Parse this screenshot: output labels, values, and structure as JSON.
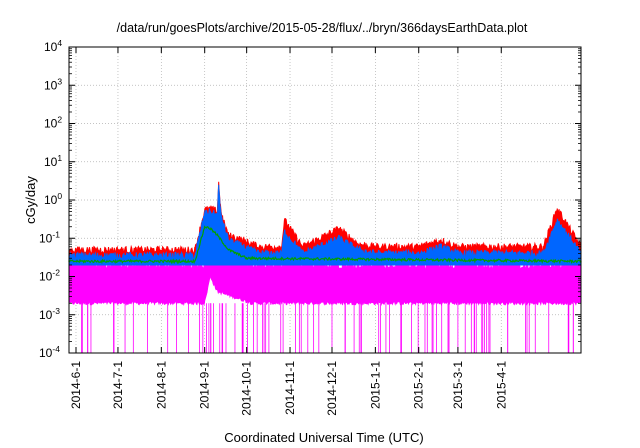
{
  "chart_data": {
    "type": "line",
    "title": "/data/run/goesPlots/archive/2015-05-28/flux/../bryn/366daysEarthData.plot",
    "xlabel": "Coordinated Universal Time (UTC)",
    "ylabel": "cGy/day",
    "yscale": "log",
    "ylim": [
      0.0001,
      10000
    ],
    "xlim": [
      "2014-05-27",
      "2015-05-28"
    ],
    "grid": true,
    "legend": "none",
    "x_ticks": [
      "2014-6-1",
      "2014-7-1",
      "2014-8-1",
      "2014-9-1",
      "2014-10-1",
      "2014-11-1",
      "2014-12-1",
      "2015-1-1",
      "2015-2-1",
      "2015-3-1",
      "2015-4-1"
    ],
    "y_ticks": [
      {
        "base": "10",
        "exp": "-4"
      },
      {
        "base": "10",
        "exp": "-3"
      },
      {
        "base": "10",
        "exp": "-2"
      },
      {
        "base": "10",
        "exp": "-1"
      },
      {
        "base": "10",
        "exp": "0"
      },
      {
        "base": "10",
        "exp": "1"
      },
      {
        "base": "10",
        "exp": "2"
      },
      {
        "base": "10",
        "exp": "3"
      },
      {
        "base": "10",
        "exp": "4"
      }
    ],
    "series": [
      {
        "color": "#ff0000",
        "x": [
          "2014-05-27",
          "2014-06-15",
          "2014-07-10",
          "2014-08-01",
          "2014-08-25",
          "2014-09-01",
          "2014-09-05",
          "2014-09-10",
          "2014-09-11",
          "2014-09-12",
          "2014-09-14",
          "2014-09-18",
          "2014-09-25",
          "2014-10-10",
          "2014-10-26",
          "2014-10-28",
          "2014-11-10",
          "2014-12-06",
          "2014-12-20",
          "2015-01-01",
          "2015-02-01",
          "2015-02-17",
          "2015-03-01",
          "2015-04-01",
          "2015-05-01",
          "2015-05-11",
          "2015-05-28"
        ],
        "y": [
          0.05,
          0.05,
          0.05,
          0.05,
          0.05,
          0.55,
          0.6,
          0.5,
          3.0,
          0.8,
          0.3,
          0.12,
          0.1,
          0.06,
          0.06,
          0.3,
          0.06,
          0.18,
          0.07,
          0.06,
          0.06,
          0.09,
          0.06,
          0.06,
          0.06,
          0.6,
          0.06
        ]
      },
      {
        "color": "#0066ff",
        "x": [
          "2014-05-27",
          "2014-06-15",
          "2014-07-10",
          "2014-08-01",
          "2014-08-25",
          "2014-09-01",
          "2014-09-05",
          "2014-09-10",
          "2014-09-11",
          "2014-09-12",
          "2014-09-14",
          "2014-09-18",
          "2014-09-25",
          "2014-10-10",
          "2014-10-26",
          "2014-10-28",
          "2014-11-10",
          "2014-12-06",
          "2014-12-20",
          "2015-01-01",
          "2015-02-01",
          "2015-02-17",
          "2015-03-01",
          "2015-04-01",
          "2015-05-01",
          "2015-05-11",
          "2015-05-28"
        ],
        "y": [
          0.035,
          0.035,
          0.035,
          0.035,
          0.035,
          0.45,
          0.5,
          0.4,
          2.5,
          0.6,
          0.25,
          0.09,
          0.07,
          0.04,
          0.04,
          0.15,
          0.04,
          0.1,
          0.05,
          0.04,
          0.04,
          0.06,
          0.04,
          0.04,
          0.04,
          0.3,
          0.04
        ]
      },
      {
        "color": "#00a000",
        "x": [
          "2014-05-27",
          "2014-08-25",
          "2014-09-01",
          "2014-09-05",
          "2014-09-10",
          "2014-09-18",
          "2014-10-01",
          "2015-05-28"
        ],
        "y": [
          0.025,
          0.025,
          0.2,
          0.18,
          0.12,
          0.05,
          0.03,
          0.025
        ]
      },
      {
        "color": "#ff00ff",
        "x": [
          "2014-05-27",
          "2014-09-01",
          "2014-09-05",
          "2014-09-10",
          "2014-10-05",
          "2015-05-28"
        ],
        "y_low": [
          0.002,
          0.002,
          0.01,
          0.004,
          0.002,
          0.002
        ],
        "y_high": [
          0.02,
          0.02,
          0.1,
          0.05,
          0.02,
          0.02
        ]
      }
    ]
  }
}
